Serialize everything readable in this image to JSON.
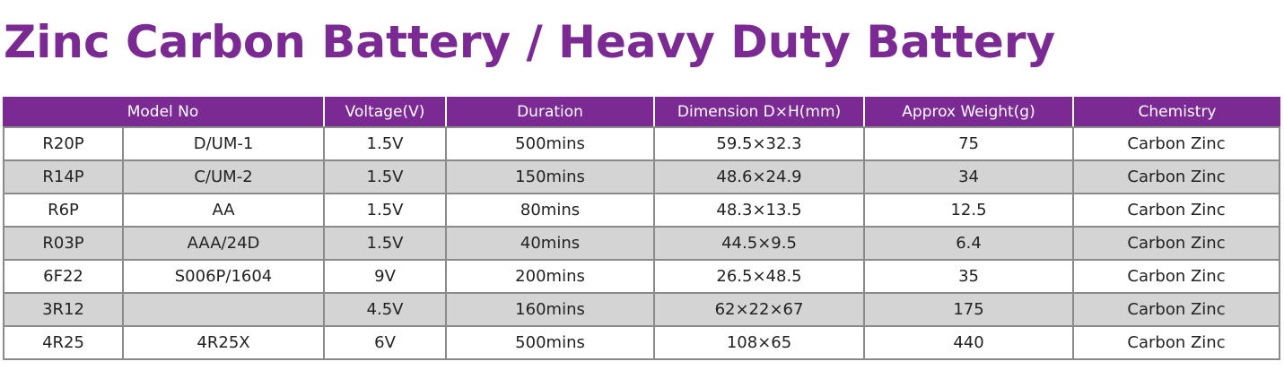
{
  "title": "Zinc Carbon Battery / Heavy Duty Battery",
  "table": {
    "headers": {
      "model_no": "Model No",
      "voltage": "Voltage(V)",
      "duration": "Duration",
      "dimension": "Dimension D×H(mm)",
      "weight": "Approx Weight(g)",
      "chemistry": "Chemistry"
    },
    "rows": [
      {
        "model": "R20P",
        "alt": "D/UM-1",
        "voltage": "1.5V",
        "duration": "500mins",
        "dimension": "59.5×32.3",
        "weight": "75",
        "chemistry": "Carbon Zinc"
      },
      {
        "model": "R14P",
        "alt": "C/UM-2",
        "voltage": "1.5V",
        "duration": "150mins",
        "dimension": "48.6×24.9",
        "weight": "34",
        "chemistry": "Carbon Zinc"
      },
      {
        "model": "R6P",
        "alt": "AA",
        "voltage": "1.5V",
        "duration": "80mins",
        "dimension": "48.3×13.5",
        "weight": "12.5",
        "chemistry": "Carbon Zinc"
      },
      {
        "model": "R03P",
        "alt": "AAA/24D",
        "voltage": "1.5V",
        "duration": "40mins",
        "dimension": "44.5×9.5",
        "weight": "6.4",
        "chemistry": "Carbon Zinc"
      },
      {
        "model": "6F22",
        "alt": "S006P/1604",
        "voltage": "9V",
        "duration": "200mins",
        "dimension": "26.5×48.5",
        "weight": "35",
        "chemistry": "Carbon Zinc"
      },
      {
        "model": "3R12",
        "alt": "",
        "voltage": "4.5V",
        "duration": "160mins",
        "dimension": "62×22×67",
        "weight": "175",
        "chemistry": "Carbon Zinc"
      },
      {
        "model": "4R25",
        "alt": "4R25X",
        "voltage": "6V",
        "duration": "500mins",
        "dimension": "108×65",
        "weight": "440",
        "chemistry": "Carbon Zinc"
      }
    ]
  },
  "colors": {
    "accent": "#7b2a94",
    "row_alt": "#d4d4d4",
    "grid": "#8a8a8a"
  }
}
